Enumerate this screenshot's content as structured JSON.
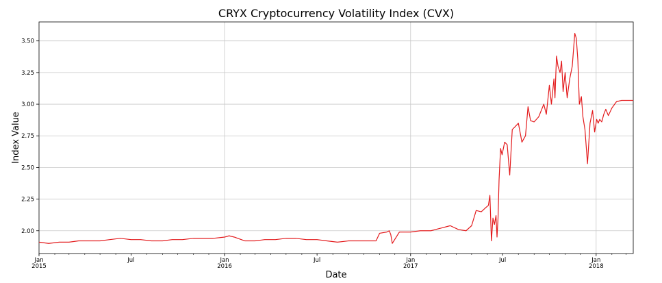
{
  "chart_data": {
    "type": "line",
    "title": "CRYX Cryptocurrency Volatility Index (CVX)",
    "xlabel": "Date",
    "ylabel": "Index Value",
    "xlim": [
      "2015-01-01",
      "2018-03-15"
    ],
    "ylim": [
      1.82,
      3.65
    ],
    "grid": true,
    "line_color": "#e31a1c",
    "yticks": [
      2.0,
      2.25,
      2.5,
      2.75,
      3.0,
      3.25,
      3.5
    ],
    "ytick_labels": [
      "2.00",
      "2.25",
      "2.50",
      "2.75",
      "3.00",
      "3.25",
      "3.50"
    ],
    "xticks_major": [
      {
        "date": "2015-01-01",
        "label": "Jan",
        "sub": "2015"
      },
      {
        "date": "2016-01-01",
        "label": "Jan",
        "sub": "2016"
      },
      {
        "date": "2017-01-01",
        "label": "Jan",
        "sub": "2017"
      },
      {
        "date": "2018-01-01",
        "label": "Jan",
        "sub": "2018"
      }
    ],
    "xticks_minor": [
      {
        "date": "2015-07-01",
        "label": "Jul"
      },
      {
        "date": "2016-07-01",
        "label": "Jul"
      },
      {
        "date": "2017-07-01",
        "label": "Jul"
      }
    ],
    "series": [
      {
        "x": [
          "2015-01-01",
          "2015-01-20",
          "2015-02-10",
          "2015-03-01",
          "2015-03-20",
          "2015-04-10",
          "2015-05-01",
          "2015-05-20",
          "2015-06-10",
          "2015-07-01",
          "2015-07-20",
          "2015-08-10",
          "2015-09-01",
          "2015-09-20",
          "2015-10-10",
          "2015-11-01",
          "2015-11-20",
          "2015-12-10",
          "2016-01-01",
          "2016-01-10",
          "2016-01-20",
          "2016-02-10",
          "2016-03-01",
          "2016-03-20",
          "2016-04-10",
          "2016-05-01",
          "2016-05-20",
          "2016-06-10",
          "2016-07-01",
          "2016-07-20",
          "2016-08-10",
          "2016-09-01",
          "2016-09-20",
          "2016-10-10",
          "2016-10-25",
          "2016-11-01",
          "2016-11-15",
          "2016-11-20",
          "2016-11-23",
          "2016-11-26",
          "2016-12-10",
          "2017-01-01",
          "2017-01-20",
          "2017-02-10",
          "2017-03-01",
          "2017-03-20",
          "2017-04-05",
          "2017-04-20",
          "2017-05-01",
          "2017-05-10",
          "2017-05-20",
          "2017-05-28",
          "2017-06-03",
          "2017-06-06",
          "2017-06-09",
          "2017-06-12",
          "2017-06-15",
          "2017-06-18",
          "2017-06-20",
          "2017-06-22",
          "2017-06-24",
          "2017-06-27",
          "2017-06-30",
          "2017-07-05",
          "2017-07-10",
          "2017-07-15",
          "2017-07-20",
          "2017-07-25",
          "2017-08-01",
          "2017-08-08",
          "2017-08-15",
          "2017-08-20",
          "2017-08-25",
          "2017-09-01",
          "2017-09-10",
          "2017-09-20",
          "2017-09-25",
          "2017-10-01",
          "2017-10-05",
          "2017-10-10",
          "2017-10-12",
          "2017-10-15",
          "2017-10-18",
          "2017-10-22",
          "2017-10-25",
          "2017-10-28",
          "2017-11-01",
          "2017-11-05",
          "2017-11-10",
          "2017-11-15",
          "2017-11-20",
          "2017-11-23",
          "2017-11-26",
          "2017-11-29",
          "2017-12-03",
          "2017-12-06",
          "2017-12-10",
          "2017-12-15",
          "2017-12-20",
          "2017-12-25",
          "2017-12-29",
          "2018-01-02",
          "2018-01-05",
          "2018-01-08",
          "2018-01-12",
          "2018-01-16",
          "2018-01-20",
          "2018-01-25",
          "2018-02-01",
          "2018-02-10",
          "2018-02-20",
          "2018-03-01",
          "2018-03-08",
          "2018-03-15"
        ],
        "y": [
          1.91,
          1.9,
          1.91,
          1.91,
          1.92,
          1.92,
          1.92,
          1.93,
          1.94,
          1.93,
          1.93,
          1.92,
          1.92,
          1.93,
          1.93,
          1.94,
          1.94,
          1.94,
          1.95,
          1.96,
          1.95,
          1.92,
          1.92,
          1.93,
          1.93,
          1.94,
          1.94,
          1.93,
          1.93,
          1.92,
          1.91,
          1.92,
          1.92,
          1.92,
          1.92,
          1.98,
          1.99,
          2.0,
          1.97,
          1.9,
          1.99,
          1.99,
          2.0,
          2.0,
          2.02,
          2.04,
          2.01,
          2.0,
          2.04,
          2.16,
          2.15,
          2.18,
          2.2,
          2.28,
          1.92,
          2.1,
          2.05,
          2.12,
          1.95,
          2.1,
          2.4,
          2.65,
          2.6,
          2.7,
          2.68,
          2.44,
          2.8,
          2.82,
          2.85,
          2.7,
          2.75,
          2.98,
          2.87,
          2.86,
          2.9,
          3.0,
          2.92,
          3.15,
          3.0,
          3.2,
          3.05,
          3.38,
          3.3,
          3.25,
          3.34,
          3.1,
          3.25,
          3.05,
          3.2,
          3.3,
          3.56,
          3.52,
          3.35,
          3.0,
          3.06,
          2.9,
          2.8,
          2.53,
          2.85,
          2.95,
          2.78,
          2.88,
          2.85,
          2.88,
          2.86,
          2.92,
          2.96,
          2.91,
          2.97,
          3.02,
          3.03,
          3.03,
          3.03,
          3.03
        ]
      }
    ]
  }
}
